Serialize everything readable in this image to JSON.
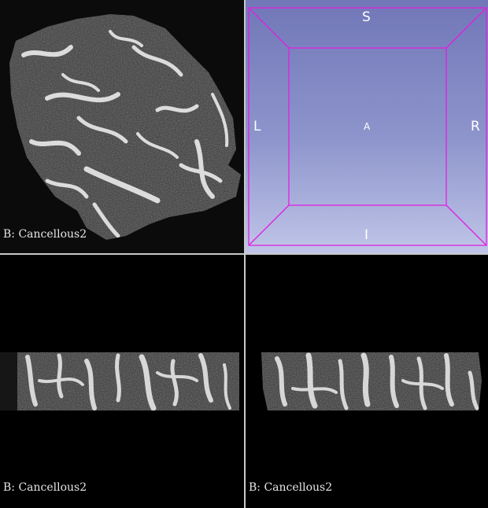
{
  "views": {
    "axial": {
      "label": "B: Cancellous2"
    },
    "sagittal": {
      "label": "B: Cancellous2"
    },
    "coronal": {
      "label": "B: Cancellous2"
    },
    "three_d": {
      "orientation": {
        "superior": "S",
        "inferior": "I",
        "left": "L",
        "right": "R",
        "anterior": "A"
      },
      "box_color": "#e020e0",
      "background_top": "#7177b7",
      "background_bottom": "#c0c5e8"
    }
  }
}
